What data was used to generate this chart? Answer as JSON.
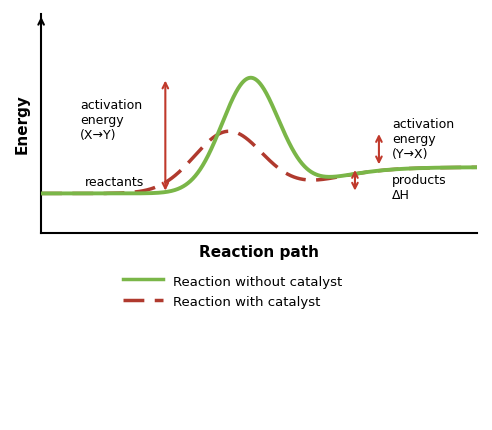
{
  "title": "",
  "xlabel": "Reaction path",
  "ylabel": "Energy",
  "background_color": "#ffffff",
  "line_without_catalyst_color": "#7ab648",
  "line_with_catalyst_color": "#b03a2e",
  "arrow_color": "#c0392b",
  "reactant_energy": 0.18,
  "product_energy": 0.3,
  "peak_without_catalyst": 0.82,
  "peak_with_catalyst": 0.58,
  "legend_labels": [
    "Reaction without catalyst",
    "Reaction with catalyst"
  ],
  "label_activation_xy": "activation\nenergy\n(X→Y)",
  "label_reactants": "reactants",
  "label_activation_yx": "activation\nenergy\n(Y→X)",
  "label_products_dH": "products\nΔH"
}
